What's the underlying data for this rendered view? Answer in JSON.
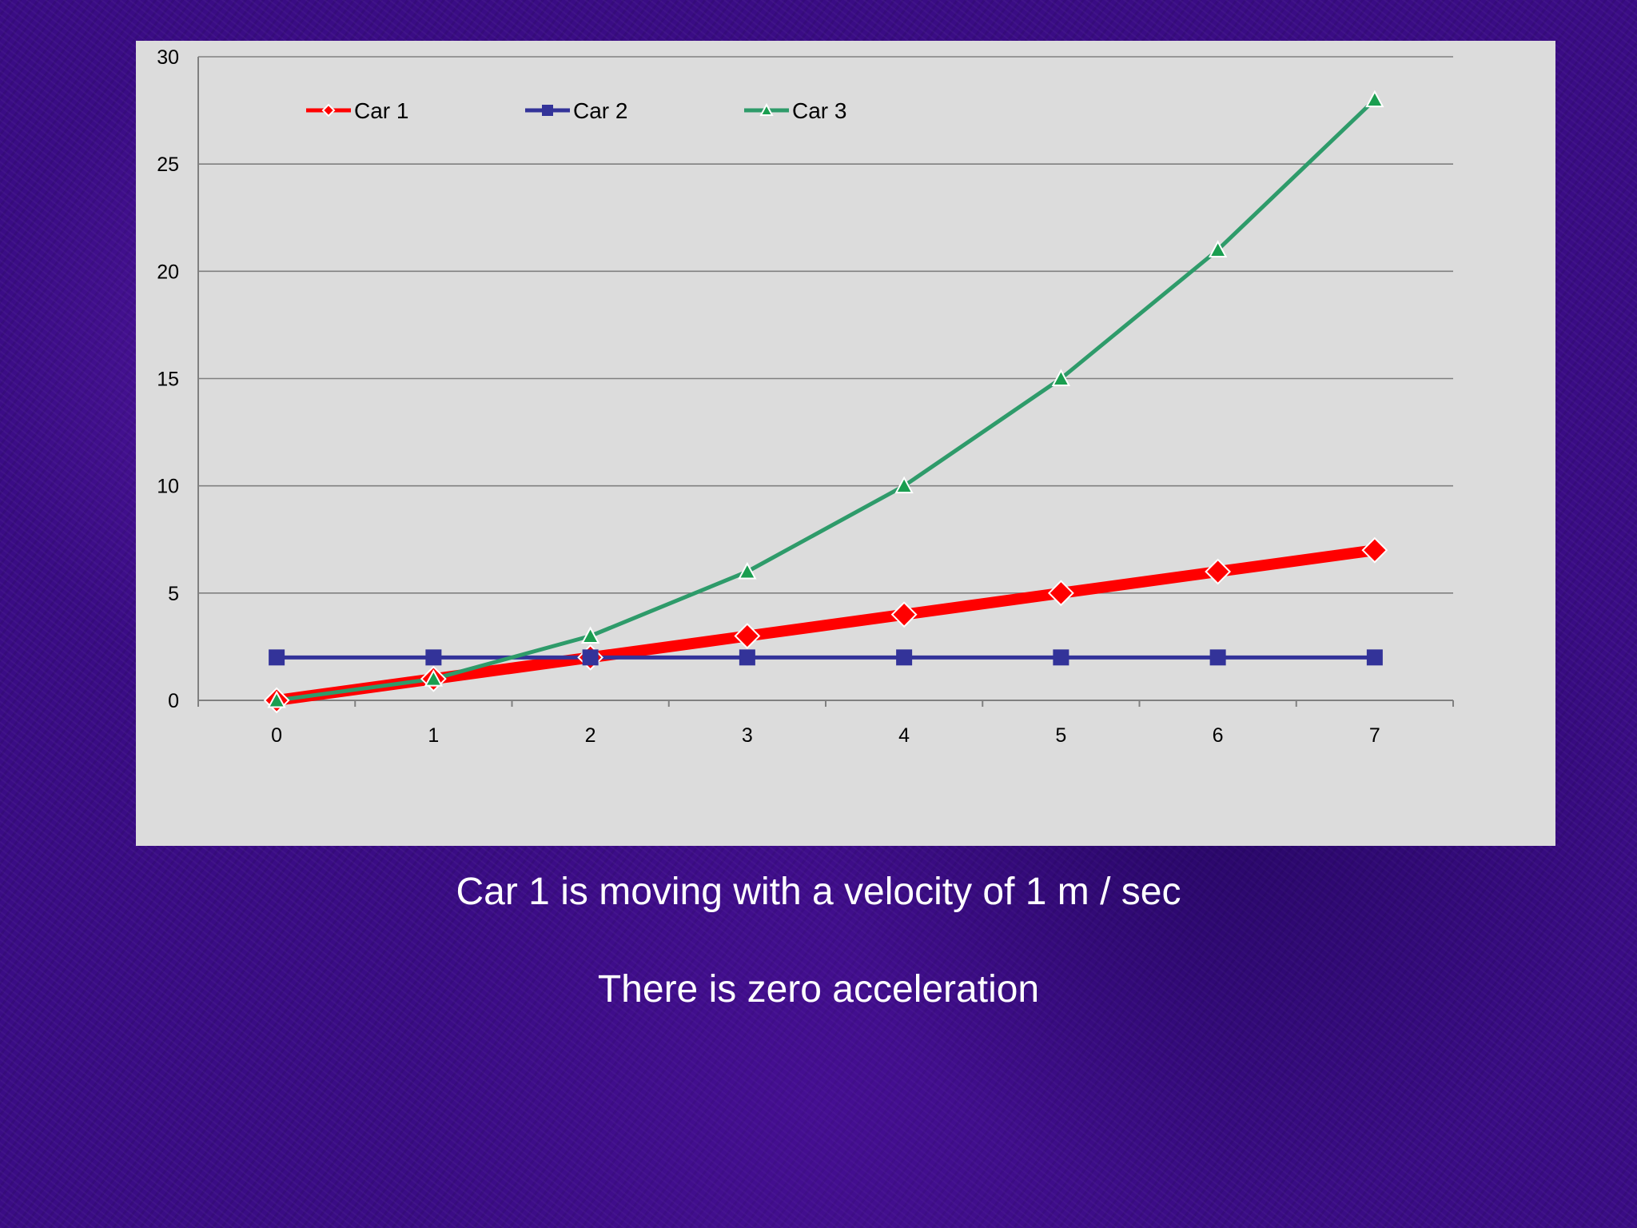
{
  "chart_data": {
    "type": "line",
    "x": [
      0,
      1,
      2,
      3,
      4,
      5,
      6,
      7
    ],
    "xlim": [
      -0.5,
      7.5
    ],
    "ylim": [
      0,
      30
    ],
    "yticks": [
      "0",
      "5",
      "10",
      "15",
      "20",
      "25",
      "30"
    ],
    "xticks": [
      "0",
      "1",
      "2",
      "3",
      "4",
      "5",
      "6",
      "7"
    ],
    "grid": "horizontal",
    "legend_placement": "top-left",
    "series": [
      {
        "name": "Car 1",
        "values": [
          0,
          1,
          2,
          3,
          4,
          5,
          6,
          7
        ],
        "color": "#ff0000",
        "marker": "diamond"
      },
      {
        "name": "Car 2",
        "values": [
          2,
          2,
          2,
          2,
          2,
          2,
          2,
          2
        ],
        "color": "#333399",
        "marker": "square"
      },
      {
        "name": "Car 3",
        "values": [
          0,
          1,
          3,
          6,
          10,
          15,
          21,
          28
        ],
        "color": "#2e9b6a",
        "marker": "triangle"
      }
    ]
  },
  "captions": {
    "line1": "Car 1 is moving with a velocity of 1 m / sec",
    "line2": "There is zero acceleration"
  },
  "colors": {
    "background": "#3a0c85",
    "plot_area": "#dcdcdc",
    "gridline": "#808080"
  }
}
